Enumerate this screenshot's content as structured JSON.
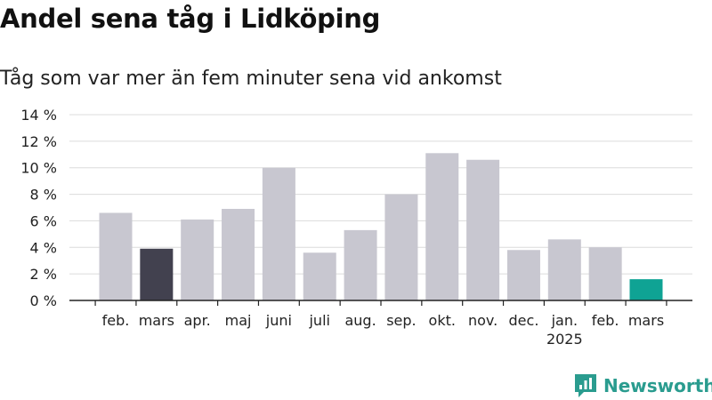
{
  "header": {
    "title": "Andel sena tåg i Lidköping",
    "subtitle": "Tåg som var mer än fem minuter sena vid ankomst"
  },
  "brand": {
    "name": "Newsworthy",
    "icon": "newsworthy-logo-icon",
    "color": "#2a9c8f"
  },
  "chart_data": {
    "type": "bar",
    "categories": [
      "feb.",
      "mars",
      "apr.",
      "maj",
      "juni",
      "juli",
      "aug.",
      "sep.",
      "okt.",
      "nov.",
      "dec.",
      "jan.",
      "feb.",
      "mars"
    ],
    "category_sublabels": [
      "",
      "",
      "",
      "",
      "",
      "",
      "",
      "",
      "",
      "",
      "",
      "2025",
      "",
      ""
    ],
    "values": [
      6.6,
      3.9,
      6.1,
      6.9,
      10.0,
      3.6,
      5.3,
      8.0,
      11.1,
      10.6,
      3.8,
      4.6,
      4.0,
      1.6
    ],
    "bar_colors": [
      "#c8c7d0",
      "#42414f",
      "#c8c7d0",
      "#c8c7d0",
      "#c8c7d0",
      "#c8c7d0",
      "#c8c7d0",
      "#c8c7d0",
      "#c8c7d0",
      "#c8c7d0",
      "#c8c7d0",
      "#c8c7d0",
      "#c8c7d0",
      "#0fa394"
    ],
    "y_ticks": [
      0,
      2,
      4,
      6,
      8,
      10,
      12,
      14
    ],
    "y_tick_labels": [
      "0 %",
      "2 %",
      "4 %",
      "6 %",
      "8 %",
      "10 %",
      "12 %",
      "14 %"
    ],
    "ylim": [
      0,
      14
    ],
    "grid": true,
    "unit": "%"
  }
}
